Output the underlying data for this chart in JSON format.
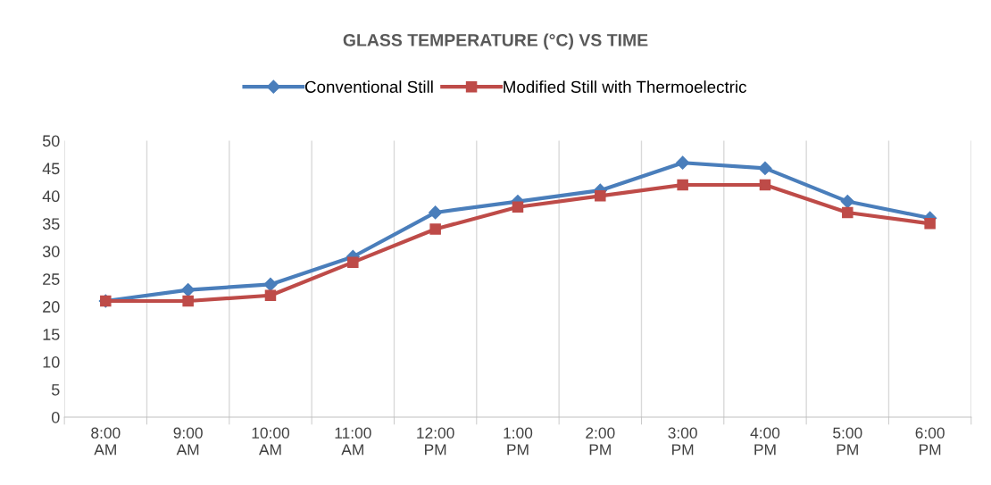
{
  "chart_data": {
    "type": "line",
    "title": "GLASS TEMPERATURE (°C) VS TIME",
    "categories": [
      "8:00\nAM",
      "9:00\nAM",
      "10:00\nAM",
      "11:00\nAM",
      "12:00\nPM",
      "1:00\nPM",
      "2:00\nPM",
      "3:00\nPM",
      "4:00\nPM",
      "5:00\nPM",
      "6:00\nPM"
    ],
    "series": [
      {
        "name": "Conventional Still",
        "color": "#4a7ebb",
        "marker": "diamond",
        "values": [
          21,
          23,
          24,
          29,
          37,
          39,
          41,
          46,
          45,
          39,
          36
        ]
      },
      {
        "name": "Modified Still with Thermoelectric",
        "color": "#be4b48",
        "marker": "square",
        "values": [
          21,
          21,
          22,
          28,
          34,
          38,
          40,
          42,
          42,
          37,
          35
        ]
      }
    ],
    "ylim": [
      0,
      50
    ],
    "yticks": [
      0,
      5,
      10,
      15,
      20,
      25,
      30,
      35,
      40,
      45,
      50
    ],
    "grid": "x",
    "legend": "top",
    "line_style": "solid"
  }
}
